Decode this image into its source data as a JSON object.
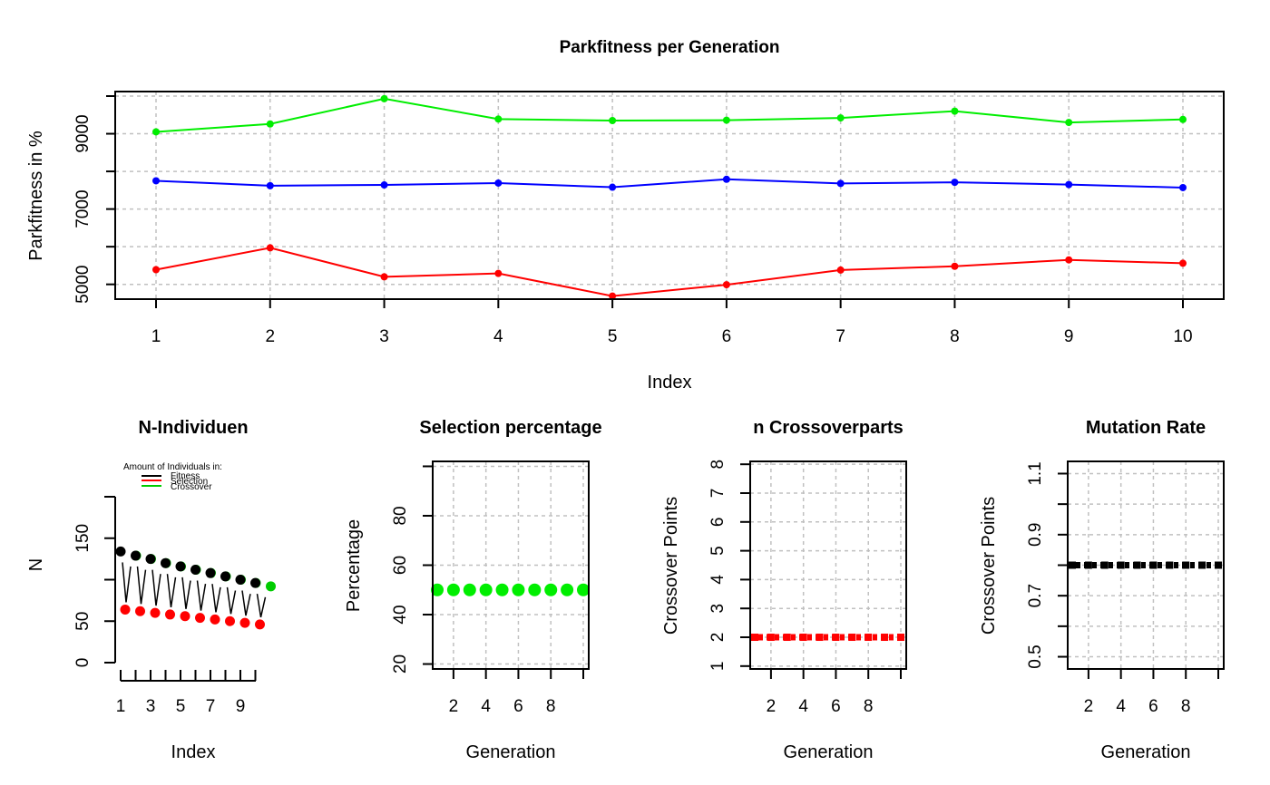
{
  "chart_data": [
    {
      "id": "parkfitness",
      "type": "line",
      "title": "Parkfitness per Generation",
      "xlabel": "Index",
      "ylabel": "Parkfitness in %",
      "xlim": [
        1,
        10
      ],
      "ylim": [
        4800,
        10000
      ],
      "grid": true,
      "x": [
        1,
        2,
        3,
        4,
        5,
        6,
        7,
        8,
        9,
        10
      ],
      "x_ticks": [
        "1",
        "2",
        "3",
        "4",
        "5",
        "6",
        "7",
        "8",
        "9",
        "10"
      ],
      "y_ticks": [
        "5000",
        "7000",
        "9000"
      ],
      "series": [
        {
          "color": "#00ee00",
          "values": [
            9050,
            9260,
            9930,
            9390,
            9350,
            9360,
            9420,
            9600,
            9300,
            9380
          ]
        },
        {
          "color": "#0000ff",
          "values": [
            7750,
            7620,
            7640,
            7690,
            7580,
            7790,
            7680,
            7710,
            7650,
            7570
          ]
        },
        {
          "color": "#ff0000",
          "values": [
            5390,
            5970,
            5200,
            5290,
            4690,
            4990,
            5380,
            5480,
            5650,
            5560
          ]
        }
      ]
    },
    {
      "id": "nindividuen",
      "type": "scatter",
      "title": "N-Individuen",
      "xlabel": "Index",
      "ylabel": "N",
      "ylim": [
        0,
        200
      ],
      "grid": false,
      "x_ticks": [
        "1",
        "3",
        "5",
        "7",
        "9"
      ],
      "y_ticks": [
        "0",
        "50",
        "150"
      ],
      "legend": {
        "title": "Amount of Individuals in:",
        "placement": "top",
        "entries": [
          {
            "label": "Fitness",
            "color": "#000000"
          },
          {
            "label": "Selection",
            "color": "#ff0000"
          },
          {
            "label": "Crossover",
            "color": "#00cc00"
          }
        ]
      },
      "fitness": [
        134,
        129,
        125,
        120,
        116,
        112,
        108,
        104,
        100,
        96
      ],
      "selection": [
        64,
        62,
        60,
        58,
        56,
        54,
        52,
        50,
        48,
        46
      ],
      "crossover": [
        129,
        125,
        120,
        116,
        112,
        108,
        104,
        100,
        96,
        92
      ]
    },
    {
      "id": "selection",
      "type": "scatter",
      "title": "Selection percentage",
      "xlabel": "Generation",
      "ylabel": "Percentage",
      "xlim": [
        1,
        10
      ],
      "ylim": [
        18,
        102
      ],
      "grid": true,
      "x_ticks": [
        "2",
        "4",
        "6",
        "8"
      ],
      "y_ticks": [
        "20",
        "40",
        "60",
        "80"
      ],
      "x": [
        1,
        2,
        3,
        4,
        5,
        6,
        7,
        8,
        9,
        10
      ],
      "values": [
        50,
        50,
        50,
        50,
        50,
        50,
        50,
        50,
        50,
        50
      ],
      "color": "#00ee00"
    },
    {
      "id": "crossover",
      "type": "scatter",
      "title": "n Crossoverparts",
      "xlabel": "Generation",
      "ylabel": "Crossover Points",
      "xlim": [
        1,
        10
      ],
      "ylim": [
        0.9,
        8.1
      ],
      "grid": true,
      "x_ticks": [
        "2",
        "4",
        "6",
        "8"
      ],
      "y_ticks": [
        "1",
        "2",
        "3",
        "4",
        "5",
        "6",
        "7",
        "8"
      ],
      "x": [
        1,
        2,
        3,
        4,
        5,
        6,
        7,
        8,
        9,
        10
      ],
      "values": [
        2,
        2,
        2,
        2,
        2,
        2,
        2,
        2,
        2,
        2
      ],
      "color": "#ff0000"
    },
    {
      "id": "mutation",
      "type": "scatter",
      "title": "Mutation Rate",
      "xlabel": "Generation",
      "ylabel": "Crossover Points",
      "xlim": [
        1,
        10
      ],
      "ylim": [
        0.46,
        1.14
      ],
      "grid": true,
      "x_ticks": [
        "2",
        "4",
        "6",
        "8"
      ],
      "y_ticks": [
        "0.5",
        "0.7",
        "0.9",
        "1.1"
      ],
      "x": [
        1,
        2,
        3,
        4,
        5,
        6,
        7,
        8,
        9,
        10
      ],
      "values": [
        0.8,
        0.8,
        0.8,
        0.8,
        0.8,
        0.8,
        0.8,
        0.8,
        0.8,
        0.8
      ],
      "color": "#000000"
    }
  ]
}
